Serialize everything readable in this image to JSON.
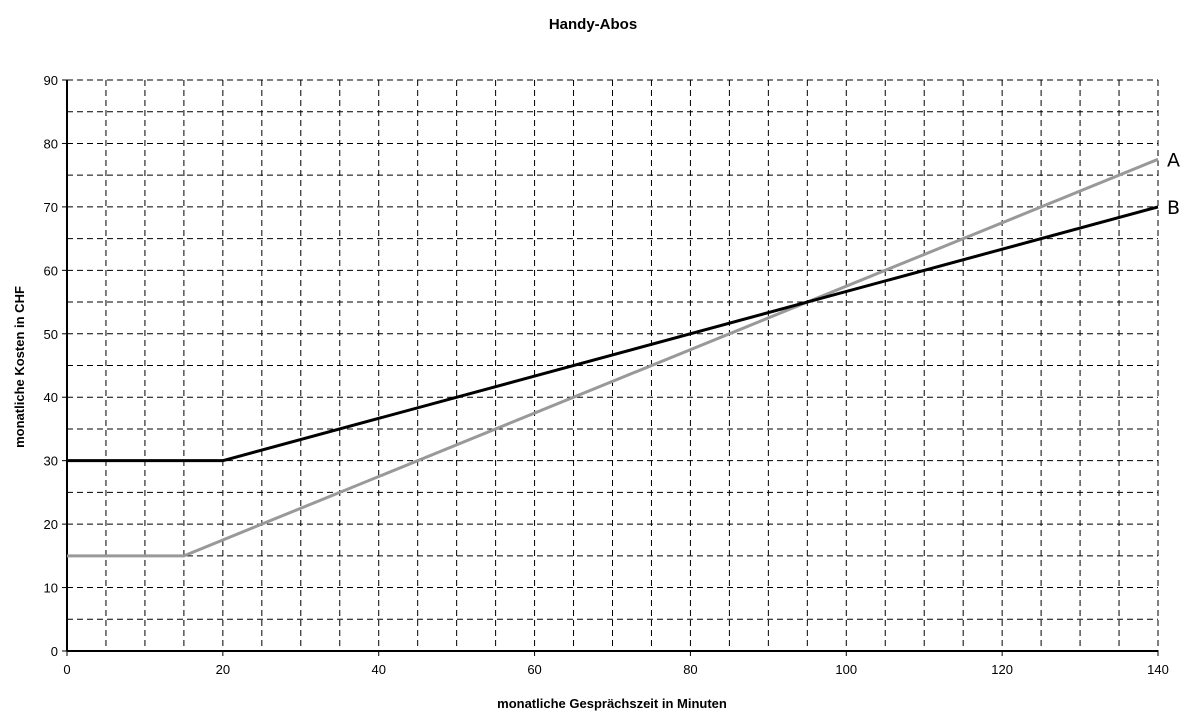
{
  "chart_data": {
    "type": "line",
    "title": "Handy-Abos",
    "xlabel": "monatliche Gesprächszeit in Minuten",
    "ylabel": "monatliche Kosten in CHF",
    "xlim": [
      0,
      140
    ],
    "ylim": [
      0,
      90
    ],
    "x_ticks": [
      0,
      20,
      40,
      60,
      80,
      100,
      120,
      140
    ],
    "y_ticks": [
      0,
      10,
      20,
      30,
      40,
      50,
      60,
      70,
      80,
      90
    ],
    "x_minor_step": 5,
    "y_minor_step": 5,
    "grid": true,
    "grid_style": "dashed",
    "legend": "end-of-line labels",
    "series": [
      {
        "name": "A",
        "color": "#999999",
        "x": [
          0,
          15,
          140
        ],
        "y": [
          15,
          15,
          77.5
        ]
      },
      {
        "name": "B",
        "color": "#000000",
        "x": [
          0,
          20,
          140
        ],
        "y": [
          30,
          30,
          70
        ]
      }
    ]
  }
}
